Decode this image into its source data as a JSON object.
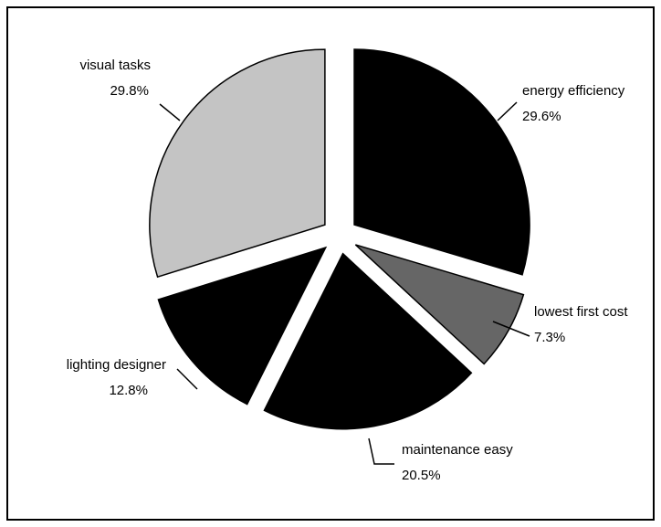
{
  "chart_data": {
    "type": "pie",
    "categories": [
      "energy efficiency",
      "lowest first cost",
      "maintenance easy",
      "lighting designer",
      "visual tasks"
    ],
    "values": [
      29.6,
      7.3,
      20.5,
      12.8,
      29.8
    ],
    "value_labels": [
      "29.6%",
      "7.3%",
      "20.5%",
      "12.8%",
      "29.8%"
    ],
    "colors": [
      "#000000",
      "#666666",
      "#000000",
      "#000000",
      "#c4c4c4"
    ]
  }
}
